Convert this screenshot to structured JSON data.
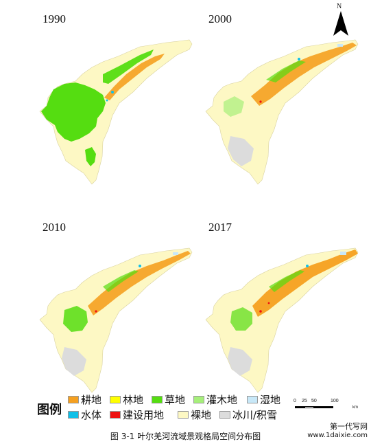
{
  "panels": [
    {
      "year": "1990"
    },
    {
      "year": "2000"
    },
    {
      "year": "2010"
    },
    {
      "year": "2017"
    }
  ],
  "north_arrow": {
    "label": "N"
  },
  "legend": {
    "title": "图例",
    "items": [
      {
        "label": "耕地",
        "color": "#f5a020"
      },
      {
        "label": "林地",
        "color": "#ffff00"
      },
      {
        "label": "草地",
        "color": "#55dd11"
      },
      {
        "label": "灌木地",
        "color": "#a6ef7a"
      },
      {
        "label": "湿地",
        "color": "#c8e8f8"
      },
      {
        "label": "水体",
        "color": "#10c0e8"
      },
      {
        "label": "建设用地",
        "color": "#ee1111"
      },
      {
        "label": "裸地",
        "color": "#fdf8c4"
      },
      {
        "label": "冰川/积雪",
        "color": "#dcdcdc"
      }
    ]
  },
  "scale_bar": {
    "ticks": [
      "0",
      "25",
      "50",
      "100"
    ],
    "unit": "km"
  },
  "caption": "图 3-1    叶尔羌河流域景观格局空间分布图",
  "watermark": {
    "line1": "第一代写网",
    "line2": "www.1daixie.com"
  }
}
